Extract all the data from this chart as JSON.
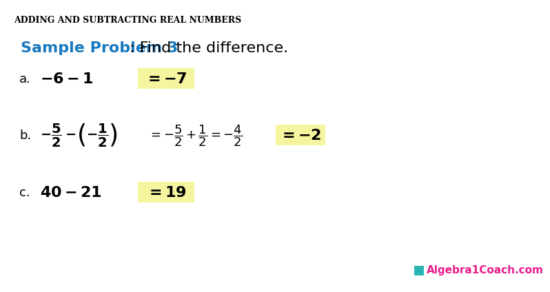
{
  "title": "ADDING AND SUBTRACTING REAL NUMBERS",
  "title_color": "#000000",
  "title_fontsize": 9,
  "bg_color": "#ffffff",
  "highlight_color": "#f5f5a0",
  "sample_problem_label": "Sample Problem 3",
  "sample_problem_label_color": "#1a7abf",
  "sample_problem_rest": ": Find the difference.",
  "sample_problem_fontsize": 16,
  "label_color": "#000000",
  "answer_color": "#000000",
  "logo_text": "Algebra1Coach.com",
  "logo_color": "#e91e8c",
  "logo_fontsize": 11
}
